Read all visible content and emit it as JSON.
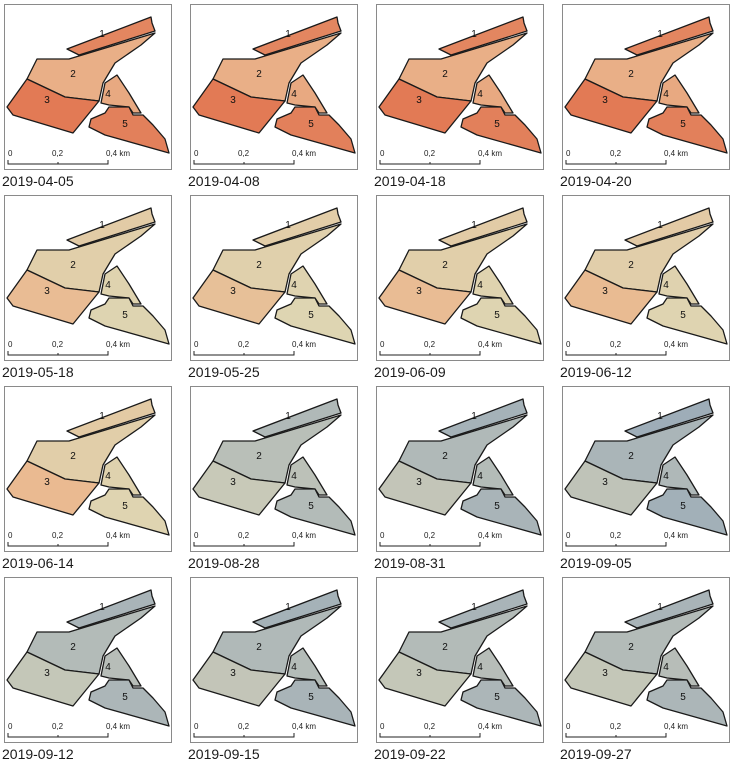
{
  "panels": [
    {
      "date": "2019-04-05",
      "palette": "warm",
      "gradient": 0.15
    },
    {
      "date": "2019-04-08",
      "palette": "warm",
      "gradient": 0.15
    },
    {
      "date": "2019-04-18",
      "palette": "warm",
      "gradient": 0.18
    },
    {
      "date": "2019-04-20",
      "palette": "warm",
      "gradient": 0.2
    },
    {
      "date": "2019-05-18",
      "palette": "mixed",
      "gradient": 0.45
    },
    {
      "date": "2019-05-25",
      "palette": "mixed",
      "gradient": 0.6
    },
    {
      "date": "2019-06-09",
      "palette": "mixed",
      "gradient": 0.45
    },
    {
      "date": "2019-06-12",
      "palette": "mixed",
      "gradient": 0.4
    },
    {
      "date": "2019-06-14",
      "palette": "mixed",
      "gradient": 0.35
    },
    {
      "date": "2019-08-28",
      "palette": "cool",
      "gradient": 0.6
    },
    {
      "date": "2019-08-31",
      "palette": "cool",
      "gradient": 0.75
    },
    {
      "date": "2019-09-05",
      "palette": "cool",
      "gradient": 0.85
    },
    {
      "date": "2019-09-12",
      "palette": "cool",
      "gradient": 0.7
    },
    {
      "date": "2019-09-15",
      "palette": "cool",
      "gradient": 0.75
    },
    {
      "date": "2019-09-22",
      "palette": "cool",
      "gradient": 0.7
    },
    {
      "date": "2019-09-27",
      "palette": "cool",
      "gradient": 0.7
    }
  ],
  "field_labels": [
    "1",
    "2",
    "3",
    "4",
    "5"
  ],
  "scalebar": {
    "ticks": [
      "0",
      "0,2",
      "0,4 km"
    ]
  },
  "colors": {
    "warm": "#e06e4a",
    "warm_light": "#f2a77a",
    "neutral": "#f0e4b8",
    "cool_light": "#c8cfb8",
    "cool": "#8ea2b8",
    "outline": "#1a1a1a"
  }
}
